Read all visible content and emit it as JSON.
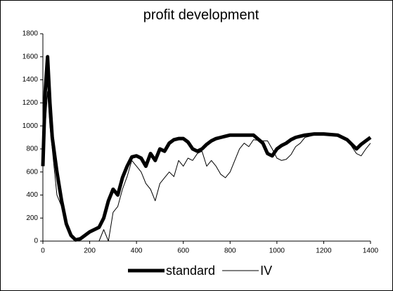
{
  "chart_data": {
    "type": "line",
    "title": "profit development",
    "x": [
      0,
      10,
      20,
      30,
      40,
      60,
      80,
      100,
      120,
      140,
      160,
      200,
      240,
      260,
      280,
      300,
      320,
      340,
      360,
      380,
      400,
      420,
      440,
      460,
      480,
      500,
      520,
      540,
      560,
      580,
      600,
      620,
      640,
      660,
      680,
      700,
      720,
      740,
      760,
      780,
      800,
      820,
      840,
      860,
      880,
      900,
      940,
      960,
      980,
      1000,
      1020,
      1040,
      1060,
      1080,
      1100,
      1120,
      1160,
      1200,
      1260,
      1300,
      1340,
      1360,
      1380,
      1400
    ],
    "series": [
      {
        "name": "standard",
        "color": "#000000",
        "width": 5,
        "values": [
          650,
          1300,
          1600,
          1200,
          900,
          600,
          350,
          150,
          50,
          10,
          20,
          80,
          120,
          200,
          350,
          450,
          400,
          550,
          650,
          730,
          740,
          720,
          650,
          760,
          700,
          800,
          780,
          850,
          880,
          890,
          890,
          860,
          800,
          780,
          800,
          840,
          870,
          890,
          900,
          910,
          920,
          920,
          920,
          920,
          920,
          920,
          850,
          760,
          740,
          800,
          830,
          850,
          880,
          900,
          910,
          920,
          930,
          930,
          920,
          880,
          800,
          840,
          870,
          900
        ]
      },
      {
        "name": "IV",
        "color": "#000000",
        "width": 1,
        "values": [
          650,
          1000,
          1300,
          1000,
          800,
          400,
          300,
          150,
          50,
          0,
          0,
          0,
          0,
          100,
          0,
          250,
          300,
          450,
          560,
          700,
          650,
          600,
          500,
          450,
          350,
          500,
          550,
          600,
          560,
          700,
          650,
          720,
          700,
          760,
          780,
          650,
          700,
          650,
          580,
          550,
          600,
          700,
          800,
          850,
          820,
          880,
          870,
          870,
          800,
          720,
          700,
          710,
          750,
          820,
          850,
          900,
          920,
          920,
          920,
          880,
          760,
          740,
          800,
          850
        ]
      }
    ],
    "xlim": [
      0,
      1400
    ],
    "xticks": [
      0,
      200,
      400,
      600,
      800,
      1000,
      1200,
      1400
    ],
    "ylim": [
      0,
      1800
    ],
    "yticks": [
      0,
      200,
      400,
      600,
      800,
      1000,
      1200,
      1400,
      1600,
      1800
    ],
    "grid": false,
    "legend": "bottom"
  }
}
